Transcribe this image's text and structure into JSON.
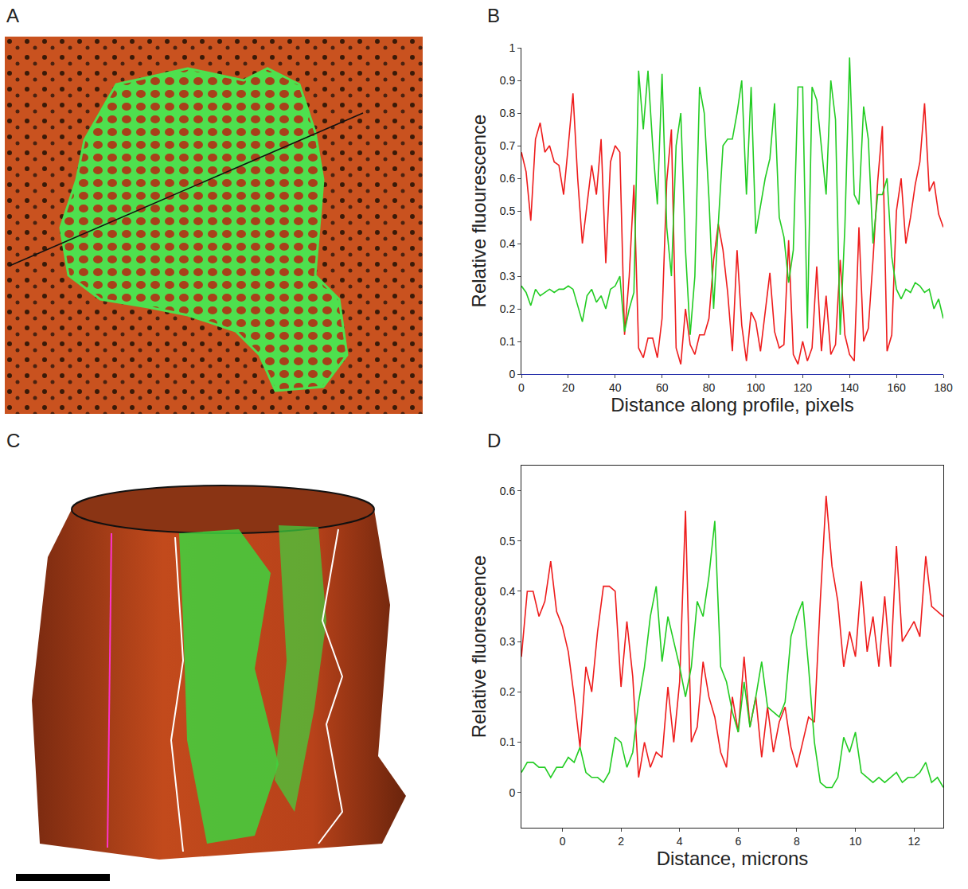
{
  "figure": {
    "panel_labels": [
      "A",
      "B",
      "C",
      "D"
    ]
  },
  "chart_data": [
    {
      "type": "line",
      "xlabel": "Distance along profile, pixels",
      "ylabel": "Relative fluourescence",
      "xlim": [
        0,
        180
      ],
      "xticks": [
        0,
        20,
        40,
        60,
        80,
        100,
        120,
        140,
        160,
        180
      ],
      "ylim": [
        0,
        1
      ],
      "yticks": [
        0,
        0.1,
        0.2,
        0.3,
        0.4,
        0.5,
        0.6,
        0.7,
        0.8,
        0.9,
        1
      ],
      "grid": false,
      "x": [
        0,
        2,
        4,
        6,
        8,
        10,
        12,
        14,
        16,
        18,
        20,
        22,
        24,
        26,
        28,
        30,
        32,
        34,
        36,
        38,
        40,
        42,
        44,
        46,
        48,
        50,
        52,
        54,
        56,
        58,
        60,
        62,
        64,
        66,
        68,
        70,
        72,
        74,
        76,
        78,
        80,
        82,
        84,
        86,
        88,
        90,
        92,
        94,
        96,
        98,
        100,
        102,
        104,
        106,
        108,
        110,
        112,
        114,
        116,
        118,
        120,
        122,
        124,
        126,
        128,
        130,
        132,
        134,
        136,
        138,
        140,
        142,
        144,
        146,
        148,
        150,
        152,
        154,
        156,
        158,
        160,
        162,
        164,
        166,
        168,
        170,
        172,
        174,
        176,
        178,
        180
      ],
      "series": [
        {
          "color": "#ee1c1c",
          "values": [
            0.68,
            0.62,
            0.47,
            0.72,
            0.77,
            0.68,
            0.7,
            0.65,
            0.64,
            0.55,
            0.7,
            0.86,
            0.6,
            0.4,
            0.52,
            0.64,
            0.55,
            0.72,
            0.34,
            0.65,
            0.7,
            0.68,
            0.12,
            0.3,
            0.58,
            0.08,
            0.05,
            0.11,
            0.11,
            0.05,
            0.17,
            0.59,
            0.75,
            0.08,
            0.03,
            0.2,
            0.09,
            0.06,
            0.12,
            0.12,
            0.17,
            0.35,
            0.46,
            0.38,
            0.25,
            0.07,
            0.38,
            0.15,
            0.04,
            0.19,
            0.16,
            0.07,
            0.19,
            0.31,
            0.13,
            0.08,
            0.09,
            0.41,
            0.06,
            0.03,
            0.1,
            0.04,
            0.08,
            0.33,
            0.07,
            0.24,
            0.06,
            0.09,
            0.35,
            0.12,
            0.06,
            0.04,
            0.45,
            0.1,
            0.14,
            0.35,
            0.59,
            0.76,
            0.07,
            0.12,
            0.5,
            0.6,
            0.4,
            0.48,
            0.58,
            0.65,
            0.83,
            0.56,
            0.59,
            0.49,
            0.45
          ]
        },
        {
          "color": "#22cc22",
          "values": [
            0.27,
            0.25,
            0.21,
            0.26,
            0.24,
            0.25,
            0.26,
            0.25,
            0.26,
            0.26,
            0.27,
            0.26,
            0.21,
            0.16,
            0.24,
            0.26,
            0.22,
            0.24,
            0.2,
            0.26,
            0.27,
            0.3,
            0.13,
            0.2,
            0.25,
            0.93,
            0.75,
            0.93,
            0.7,
            0.52,
            0.92,
            0.45,
            0.3,
            0.7,
            0.8,
            0.38,
            0.12,
            0.3,
            0.88,
            0.8,
            0.54,
            0.2,
            0.46,
            0.7,
            0.72,
            0.72,
            0.8,
            0.9,
            0.55,
            0.88,
            0.43,
            0.52,
            0.6,
            0.66,
            0.83,
            0.48,
            0.42,
            0.28,
            0.38,
            0.88,
            0.88,
            0.14,
            0.88,
            0.84,
            0.7,
            0.55,
            0.9,
            0.78,
            0.12,
            0.45,
            0.97,
            0.55,
            0.52,
            0.82,
            0.72,
            0.4,
            0.55,
            0.55,
            0.6,
            0.36,
            0.26,
            0.23,
            0.26,
            0.25,
            0.28,
            0.27,
            0.25,
            0.26,
            0.2,
            0.23,
            0.17
          ]
        }
      ]
    },
    {
      "type": "line",
      "xlabel": "Distance, microns",
      "ylabel": "Relative fluorescence",
      "xlim": [
        -1.4,
        13
      ],
      "xticks": [
        0,
        2,
        4,
        6,
        8,
        10,
        12
      ],
      "ylim": [
        -0.07,
        0.65
      ],
      "yticks": [
        0,
        0.1,
        0.2,
        0.3,
        0.4,
        0.5,
        0.6
      ],
      "grid": false,
      "x": [
        -1.4,
        -1.2,
        -1.0,
        -0.8,
        -0.6,
        -0.4,
        -0.2,
        0,
        0.2,
        0.4,
        0.6,
        0.8,
        1.0,
        1.2,
        1.4,
        1.6,
        1.8,
        2.0,
        2.2,
        2.4,
        2.6,
        2.8,
        3.0,
        3.2,
        3.4,
        3.6,
        3.8,
        4.0,
        4.2,
        4.4,
        4.6,
        4.8,
        5.0,
        5.2,
        5.4,
        5.6,
        5.8,
        6.0,
        6.2,
        6.4,
        6.6,
        6.8,
        7.0,
        7.2,
        7.4,
        7.6,
        7.8,
        8.0,
        8.2,
        8.4,
        8.6,
        8.8,
        9.0,
        9.2,
        9.4,
        9.6,
        9.8,
        10.0,
        10.2,
        10.4,
        10.6,
        10.8,
        11.0,
        11.2,
        11.4,
        11.6,
        11.8,
        12.0,
        12.2,
        12.4,
        12.6,
        12.8,
        13.0
      ],
      "series": [
        {
          "color": "#ee1c1c",
          "values": [
            0.27,
            0.4,
            0.4,
            0.35,
            0.38,
            0.46,
            0.36,
            0.33,
            0.28,
            0.19,
            0.09,
            0.25,
            0.2,
            0.32,
            0.41,
            0.41,
            0.4,
            0.21,
            0.34,
            0.23,
            0.03,
            0.1,
            0.05,
            0.08,
            0.07,
            0.21,
            0.1,
            0.22,
            0.56,
            0.1,
            0.13,
            0.26,
            0.19,
            0.15,
            0.08,
            0.05,
            0.19,
            0.12,
            0.27,
            0.13,
            0.19,
            0.07,
            0.17,
            0.08,
            0.14,
            0.17,
            0.09,
            0.05,
            0.1,
            0.15,
            0.14,
            0.38,
            0.59,
            0.45,
            0.38,
            0.25,
            0.32,
            0.27,
            0.42,
            0.28,
            0.35,
            0.25,
            0.39,
            0.25,
            0.49,
            0.3,
            0.32,
            0.34,
            0.31,
            0.47,
            0.37,
            0.36,
            0.35
          ]
        },
        {
          "color": "#22cc22",
          "values": [
            0.04,
            0.06,
            0.06,
            0.05,
            0.05,
            0.03,
            0.05,
            0.05,
            0.07,
            0.06,
            0.09,
            0.04,
            0.03,
            0.03,
            0.02,
            0.04,
            0.11,
            0.1,
            0.05,
            0.08,
            0.18,
            0.25,
            0.35,
            0.41,
            0.26,
            0.35,
            0.3,
            0.25,
            0.19,
            0.25,
            0.38,
            0.35,
            0.43,
            0.54,
            0.25,
            0.22,
            0.16,
            0.12,
            0.22,
            0.13,
            0.19,
            0.26,
            0.17,
            0.16,
            0.15,
            0.18,
            0.31,
            0.35,
            0.38,
            0.25,
            0.1,
            0.02,
            0.01,
            0.01,
            0.03,
            0.11,
            0.08,
            0.12,
            0.04,
            0.03,
            0.02,
            0.03,
            0.02,
            0.03,
            0.04,
            0.02,
            0.03,
            0.03,
            0.04,
            0.06,
            0.02,
            0.03,
            0.01
          ]
        }
      ]
    }
  ]
}
